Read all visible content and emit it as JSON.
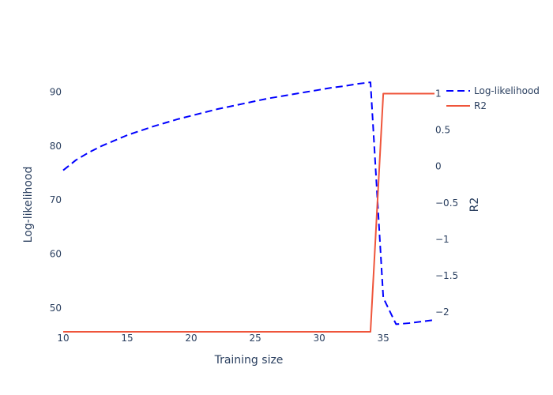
{
  "chart_data": {
    "type": "line",
    "x": [
      10,
      11,
      12,
      13,
      14,
      15,
      16,
      17,
      18,
      19,
      20,
      21,
      22,
      23,
      24,
      25,
      26,
      27,
      28,
      29,
      30,
      31,
      32,
      33,
      34,
      35,
      36,
      37,
      38,
      39
    ],
    "xlabel": "Training size",
    "xlim": [
      10,
      39
    ],
    "x_ticks": [
      10,
      15,
      20,
      25,
      30,
      35
    ],
    "y_left": {
      "label": "Log-likelihood",
      "range": [
        45.6,
        92.4
      ],
      "ticks": [
        50,
        60,
        70,
        80,
        90
      ]
    },
    "y_right": {
      "label": "R2",
      "range": [
        -2.27,
        1.2
      ],
      "ticks": [
        1,
        0.5,
        0,
        -0.5,
        -1,
        -1.5,
        -2
      ],
      "tick_labels": [
        "1",
        "0.5",
        "0",
        "−0.5",
        "−1",
        "−1.5",
        "−2"
      ]
    },
    "series": [
      {
        "name": "Log-likelihood",
        "axis": "left",
        "color": "#0000ff",
        "dash": "dash",
        "values": [
          75.5,
          77.4,
          78.8,
          80.0,
          81.0,
          82.0,
          82.8,
          83.6,
          84.3,
          85.0,
          85.6,
          86.2,
          86.8,
          87.3,
          87.8,
          88.3,
          88.8,
          89.2,
          89.6,
          90.0,
          90.4,
          90.8,
          91.1,
          91.5,
          91.8,
          51.9,
          47.0,
          47.2,
          47.5,
          47.8
        ]
      },
      {
        "name": "R2",
        "axis": "right",
        "color": "#ef553b",
        "dash": "solid",
        "values": [
          -2.27,
          -2.27,
          -2.27,
          -2.27,
          -2.27,
          -2.27,
          -2.27,
          -2.27,
          -2.27,
          -2.27,
          -2.27,
          -2.27,
          -2.27,
          -2.27,
          -2.27,
          -2.27,
          -2.27,
          -2.27,
          -2.27,
          -2.27,
          -2.27,
          -2.27,
          -2.27,
          -2.27,
          -2.27,
          1.0,
          1.0,
          1.0,
          1.0,
          1.0
        ]
      }
    ],
    "legend": {
      "placement": "top-right",
      "entries": [
        "Log-likelihood",
        "R2"
      ]
    },
    "grid": false
  }
}
